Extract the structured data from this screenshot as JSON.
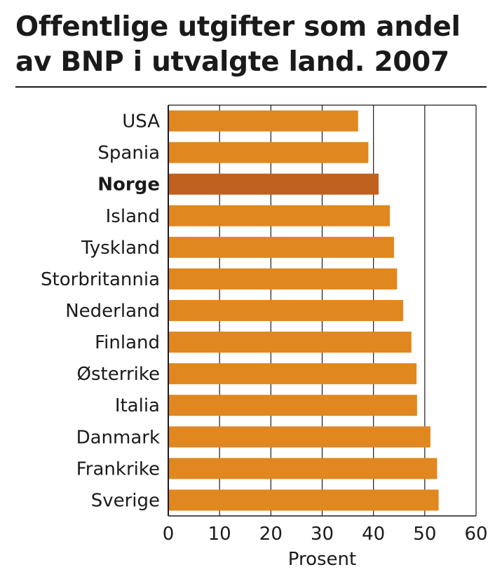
{
  "title": "Offentlige utgifter som andel av BNP i utvalgte land. 2007",
  "chart_data": {
    "type": "bar",
    "orientation": "horizontal",
    "categories": [
      "USA",
      "Spania",
      "Norge",
      "Island",
      "Tyskland",
      "Storbritannia",
      "Nederland",
      "Finland",
      "Østerrike",
      "Italia",
      "Danmark",
      "Frankrike",
      "Sverige"
    ],
    "highlighted_category": "Norge",
    "values": [
      37,
      39,
      41,
      43.2,
      44,
      44.6,
      45.8,
      47.4,
      48.4,
      48.5,
      51.1,
      52.4,
      52.7
    ],
    "xlabel": "Prosent",
    "ylabel": "",
    "xlim": [
      0,
      60
    ],
    "xticks": [
      0,
      10,
      20,
      30,
      40,
      50,
      60
    ],
    "grid": true,
    "colors": {
      "bar": "#E0871F",
      "highlight": "#C0611F",
      "grid": "#1a1a1a",
      "background": "#FFFFFF"
    }
  }
}
